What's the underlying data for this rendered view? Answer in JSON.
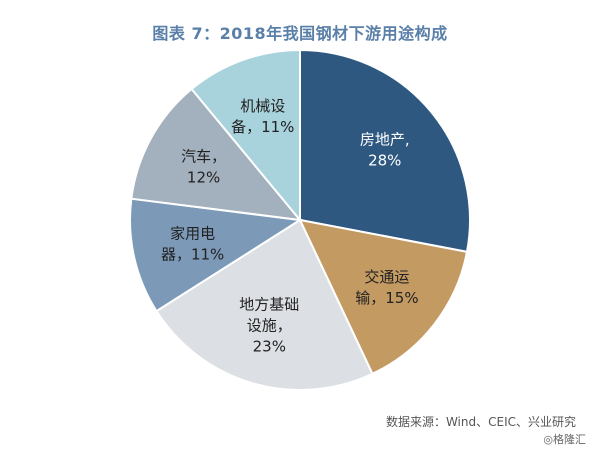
{
  "chart_data": {
    "type": "pie",
    "title": "图表 7：2018年我国钢材下游用途构成",
    "slices": [
      {
        "name": "房地产",
        "value": 28,
        "label_lines": [
          "房地产,",
          "28%"
        ],
        "color": "#2e5880",
        "text_color": "#ffffff"
      },
      {
        "name": "交通运输",
        "value": 15,
        "label_lines": [
          "交通运",
          "输，15%"
        ],
        "color": "#c39a62",
        "text_color": "#222222"
      },
      {
        "name": "地方基础设施",
        "value": 23,
        "label_lines": [
          "地方基础",
          "设施，",
          "23%"
        ],
        "color": "#dcdfe3",
        "text_color": "#222222"
      },
      {
        "name": "家用电器",
        "value": 11,
        "label_lines": [
          "家用电",
          "器，11%"
        ],
        "color": "#7c9ab8",
        "text_color": "#222222"
      },
      {
        "name": "汽车",
        "value": 12,
        "label_lines": [
          "汽车，",
          "12%"
        ],
        "color": "#a3b0bd",
        "text_color": "#222222"
      },
      {
        "name": "机械设备",
        "value": 11,
        "label_lines": [
          "机械设",
          "备，11%"
        ],
        "color": "#a8d2dc",
        "text_color": "#222222"
      }
    ]
  },
  "source": "数据来源：Wind、CEIC、兴业研究",
  "watermark": "格隆汇"
}
